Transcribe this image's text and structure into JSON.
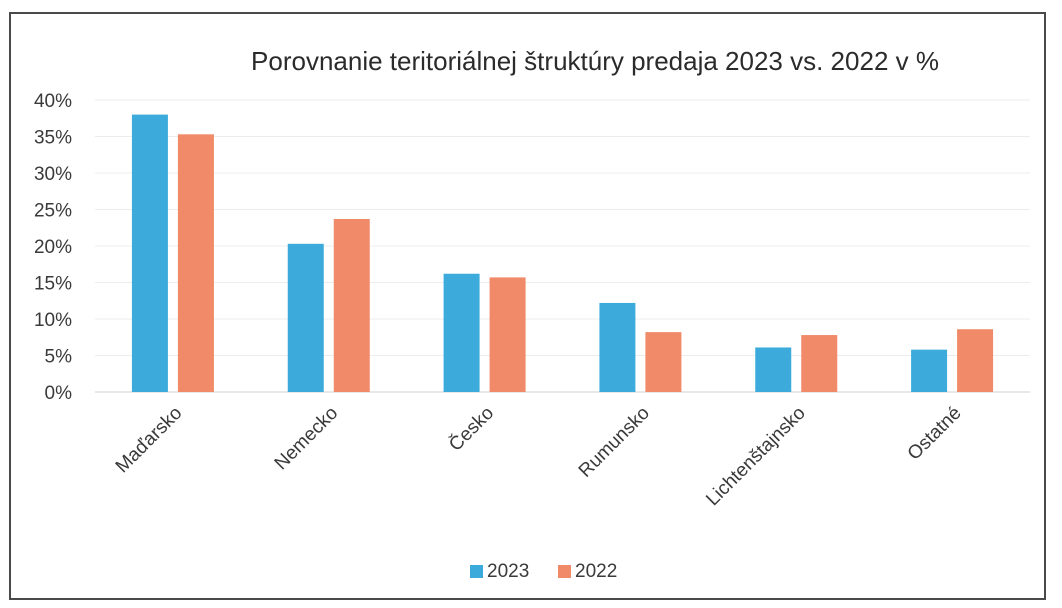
{
  "chart_data": {
    "type": "bar",
    "title": "Porovnanie teritoriálnej štruktúry predaja 2023 vs. 2022 v %",
    "categories": [
      "Maďarsko",
      "Nemecko",
      "Česko",
      "Rumunsko",
      "Lichtenštajnsko",
      "Ostatné"
    ],
    "series": [
      {
        "name": "2023",
        "color": "#3cabdb",
        "values": [
          38.0,
          20.3,
          16.2,
          12.2,
          6.1,
          5.8
        ]
      },
      {
        "name": "2022",
        "color": "#f08a68",
        "values": [
          35.3,
          23.7,
          15.7,
          8.2,
          7.8,
          8.6
        ]
      }
    ],
    "yticks": [
      "0%",
      "5%",
      "10%",
      "15%",
      "20%",
      "25%",
      "30%",
      "35%",
      "40%"
    ],
    "ylim": [
      0,
      40
    ],
    "grid": true,
    "legend_position": "bottom"
  }
}
